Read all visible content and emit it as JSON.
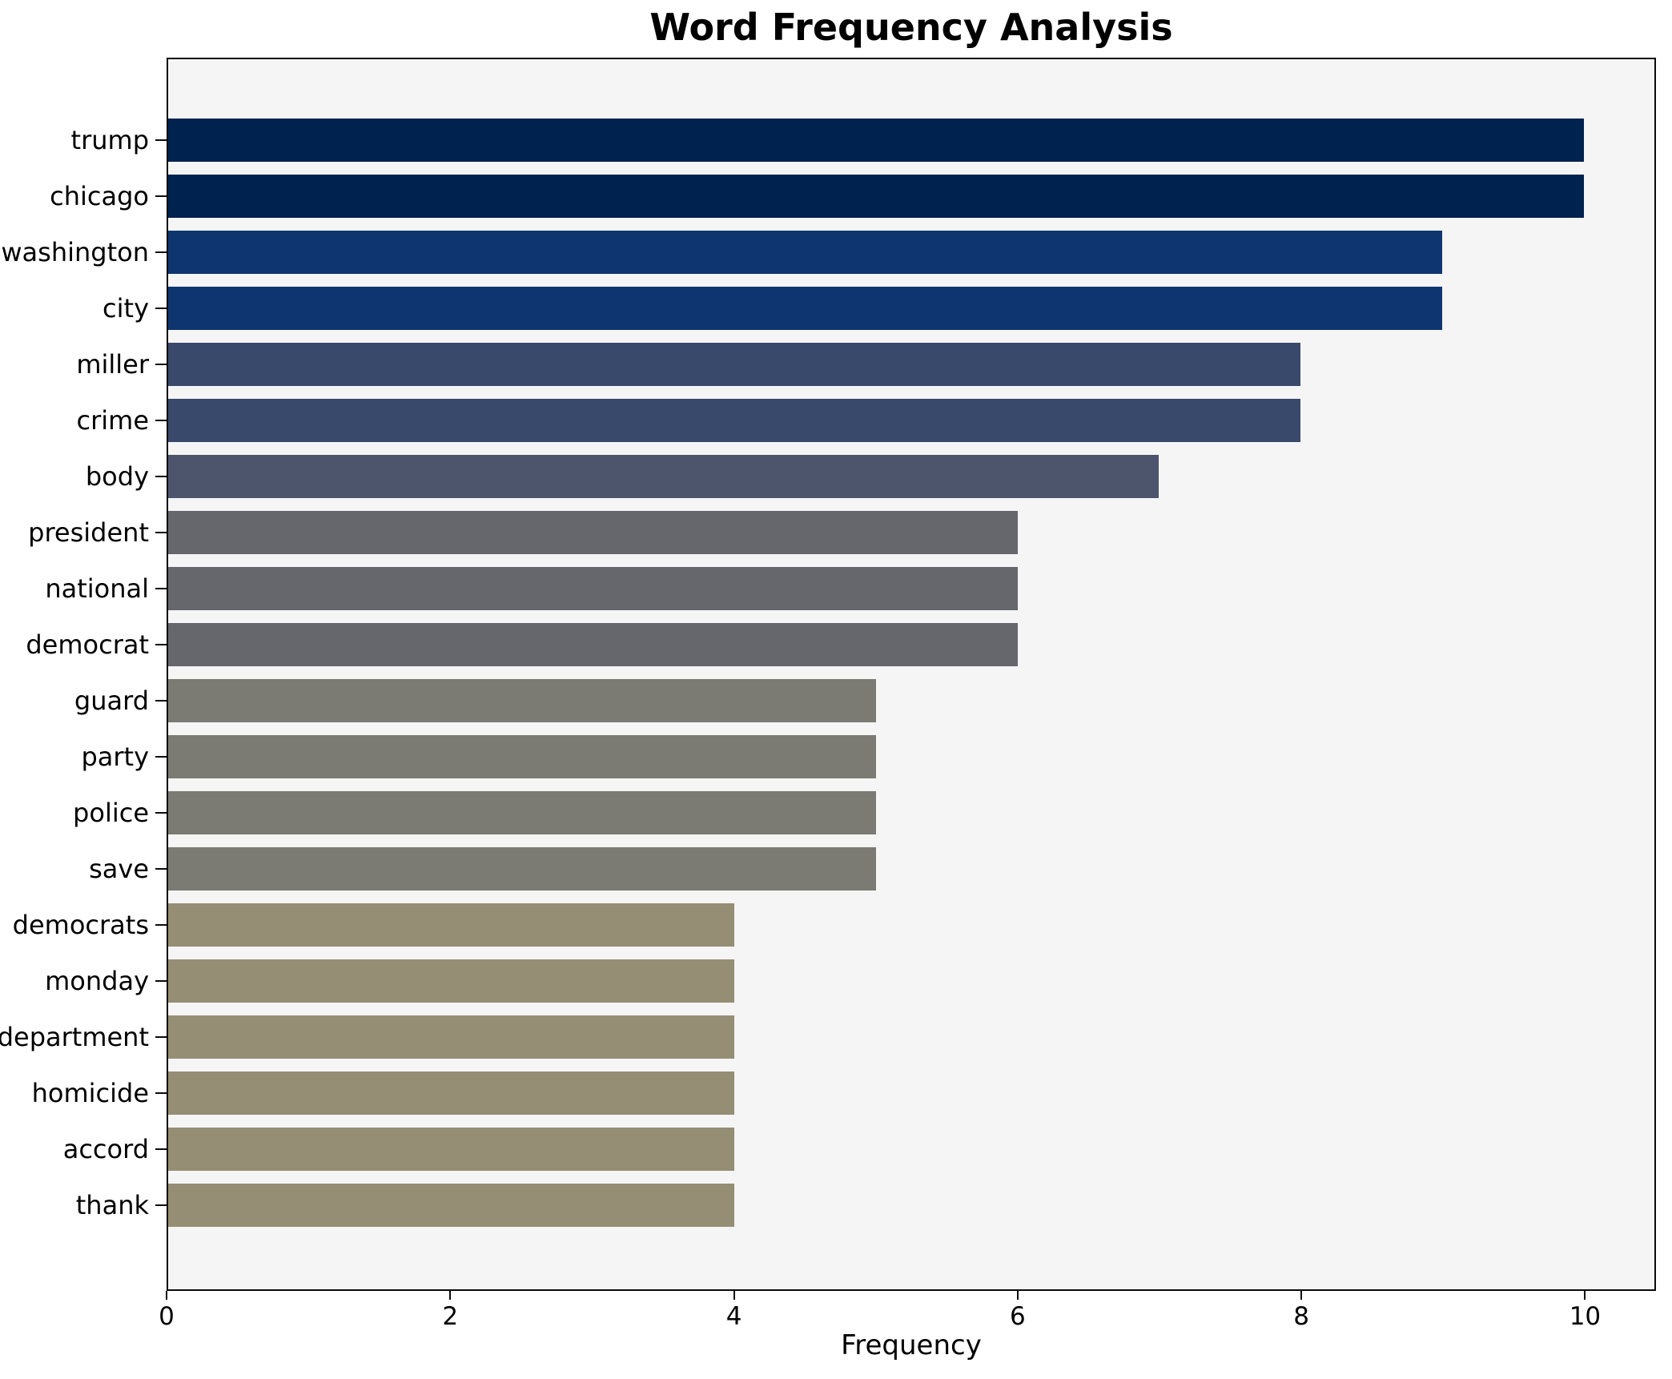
{
  "chart_data": {
    "type": "bar",
    "orientation": "horizontal",
    "title": "Word Frequency Analysis",
    "xlabel": "Frequency",
    "ylabel": "",
    "categories": [
      "trump",
      "chicago",
      "washington",
      "city",
      "miller",
      "crime",
      "body",
      "president",
      "national",
      "democrat",
      "guard",
      "party",
      "police",
      "save",
      "democrats",
      "monday",
      "department",
      "homicide",
      "accord",
      "thank"
    ],
    "values": [
      10,
      10,
      9,
      9,
      8,
      8,
      7,
      6,
      6,
      6,
      5,
      5,
      5,
      5,
      4,
      4,
      4,
      4,
      4,
      4
    ],
    "xlim": [
      0,
      10.5
    ],
    "xticks": [
      0,
      2,
      4,
      6,
      8,
      10
    ],
    "grid": false,
    "legend_position": "none",
    "plot_background": "#f5f5f6",
    "figure_background": "#ffffff",
    "axis_color": "#0a0a0a",
    "colors_by_value": {
      "10": "#00224e",
      "9": "#0e3570",
      "8": "#39496c",
      "7": "#4c556b",
      "6": "#65676d",
      "5": "#7b7a73",
      "4": "#958e74"
    }
  }
}
